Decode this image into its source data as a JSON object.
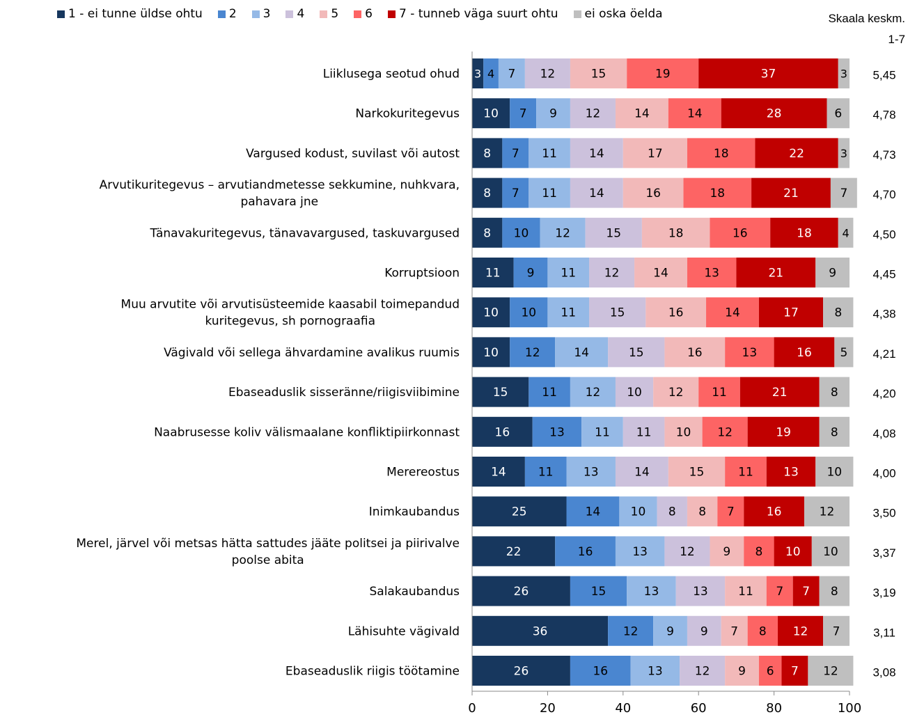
{
  "chart_data": {
    "type": "bar",
    "orientation": "horizontal",
    "stacked": true,
    "legend_position": "top",
    "xlim": [
      0,
      100
    ],
    "x_ticks": [
      "0",
      "20",
      "40",
      "60",
      "80",
      "100"
    ],
    "grid": false,
    "average_header": "Skaala keskm. 1-7",
    "series": [
      {
        "name": "1 - ei tunne üldse ohtu",
        "color": "#17375e"
      },
      {
        "name": "2",
        "color": "#4a86d0"
      },
      {
        "name": "3",
        "color": "#95b9e6"
      },
      {
        "name": "4",
        "color": "#ccc1dc"
      },
      {
        "name": "5",
        "color": "#f2b9b9"
      },
      {
        "name": "6",
        "color": "#fd6464"
      },
      {
        "name": "7 - tunneb väga suurt ohtu",
        "color": "#c00000"
      },
      {
        "name": "ei oska öelda",
        "color": "#bfbfbf"
      }
    ],
    "categories": [
      {
        "label": [
          "Liiklusega seotud ohud"
        ],
        "values": [
          3,
          4,
          7,
          12,
          15,
          19,
          37,
          3
        ],
        "avg": "5,45"
      },
      {
        "label": [
          "Narkokuritegevus"
        ],
        "values": [
          10,
          7,
          9,
          12,
          14,
          14,
          28,
          6
        ],
        "avg": "4,78"
      },
      {
        "label": [
          "Vargused kodust, suvilast või autost"
        ],
        "values": [
          8,
          7,
          11,
          14,
          17,
          18,
          22,
          3
        ],
        "avg": "4,73"
      },
      {
        "label": [
          "Arvutikuritegevus – arvutiandmetesse sekkumine, nuhkvara,",
          "pahavara jne"
        ],
        "values": [
          8,
          7,
          11,
          14,
          16,
          18,
          21,
          7
        ],
        "avg": "4,70"
      },
      {
        "label": [
          "Tänavakuritegevus, tänavavargused, taskuvargused"
        ],
        "values": [
          8,
          10,
          12,
          15,
          18,
          16,
          18,
          4
        ],
        "avg": "4,50"
      },
      {
        "label": [
          "Korruptsioon"
        ],
        "values": [
          11,
          9,
          11,
          12,
          14,
          13,
          21,
          9
        ],
        "avg": "4,45"
      },
      {
        "label": [
          "Muu arvutite või arvutisüsteemide kaasabil toimepandud",
          "kuritegevus, sh pornograafia"
        ],
        "values": [
          10,
          10,
          11,
          15,
          16,
          14,
          17,
          8
        ],
        "avg": "4,38"
      },
      {
        "label": [
          "Vägivald või sellega ähvardamine avalikus ruumis"
        ],
        "values": [
          10,
          12,
          14,
          15,
          16,
          13,
          16,
          5
        ],
        "avg": "4,21"
      },
      {
        "label": [
          "Ebaseaduslik sisseränne/riigisviibimine"
        ],
        "values": [
          15,
          11,
          12,
          10,
          12,
          11,
          21,
          8
        ],
        "avg": "4,20"
      },
      {
        "label": [
          "Naabrusesse koliv välismaalane konfliktipiirkonnast"
        ],
        "values": [
          16,
          13,
          11,
          11,
          10,
          12,
          19,
          8
        ],
        "avg": "4,08"
      },
      {
        "label": [
          "Merereostus"
        ],
        "values": [
          14,
          11,
          13,
          14,
          15,
          11,
          13,
          10
        ],
        "avg": "4,00"
      },
      {
        "label": [
          "Inimkaubandus"
        ],
        "values": [
          25,
          14,
          10,
          8,
          8,
          7,
          16,
          12
        ],
        "avg": "3,50"
      },
      {
        "label": [
          "Merel, järvel või metsas hätta sattudes jääte politsei ja piirivalve",
          "poolse abita"
        ],
        "values": [
          22,
          16,
          13,
          12,
          9,
          8,
          10,
          10
        ],
        "avg": "3,37"
      },
      {
        "label": [
          "Salakaubandus"
        ],
        "values": [
          26,
          15,
          13,
          13,
          11,
          7,
          7,
          8
        ],
        "avg": "3,19"
      },
      {
        "label": [
          "Lähisuhte vägivald"
        ],
        "values": [
          36,
          12,
          9,
          9,
          7,
          8,
          12,
          7
        ],
        "avg": "3,11"
      },
      {
        "label": [
          "Ebaseaduslik riigis töötamine"
        ],
        "values": [
          26,
          16,
          13,
          12,
          9,
          6,
          7,
          12
        ],
        "avg": "3,08"
      }
    ]
  }
}
